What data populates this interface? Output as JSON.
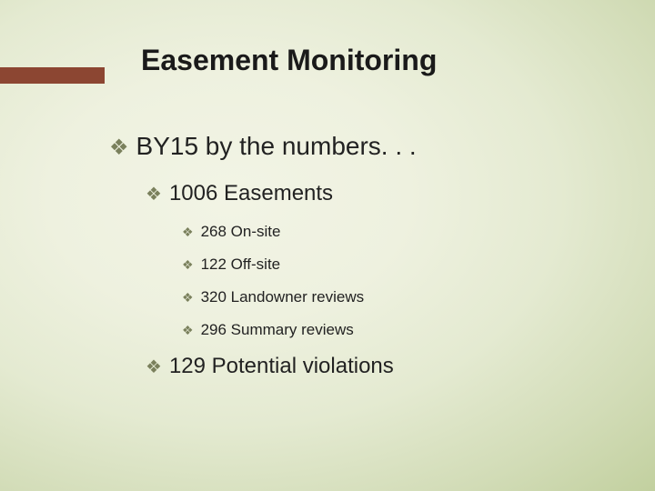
{
  "colors": {
    "accent_bar": "#8c4632",
    "bullet_glyph": "#7a805c",
    "title_text": "#1a1a1a",
    "body_text": "#222222",
    "bg_inner": "#f2f4e5",
    "bg_outer": "#c2d09f"
  },
  "bullet_char": "❖",
  "title": "Easement Monitoring",
  "level1": {
    "text": "BY15 by the numbers. . ."
  },
  "level2a": {
    "text": "1006 Easements"
  },
  "level3": [
    {
      "text": "268 On-site"
    },
    {
      "text": "122 Off-site"
    },
    {
      "text": "320 Landowner reviews"
    },
    {
      "text": "296  Summary reviews"
    }
  ],
  "level2b": {
    "text": "129 Potential violations"
  }
}
